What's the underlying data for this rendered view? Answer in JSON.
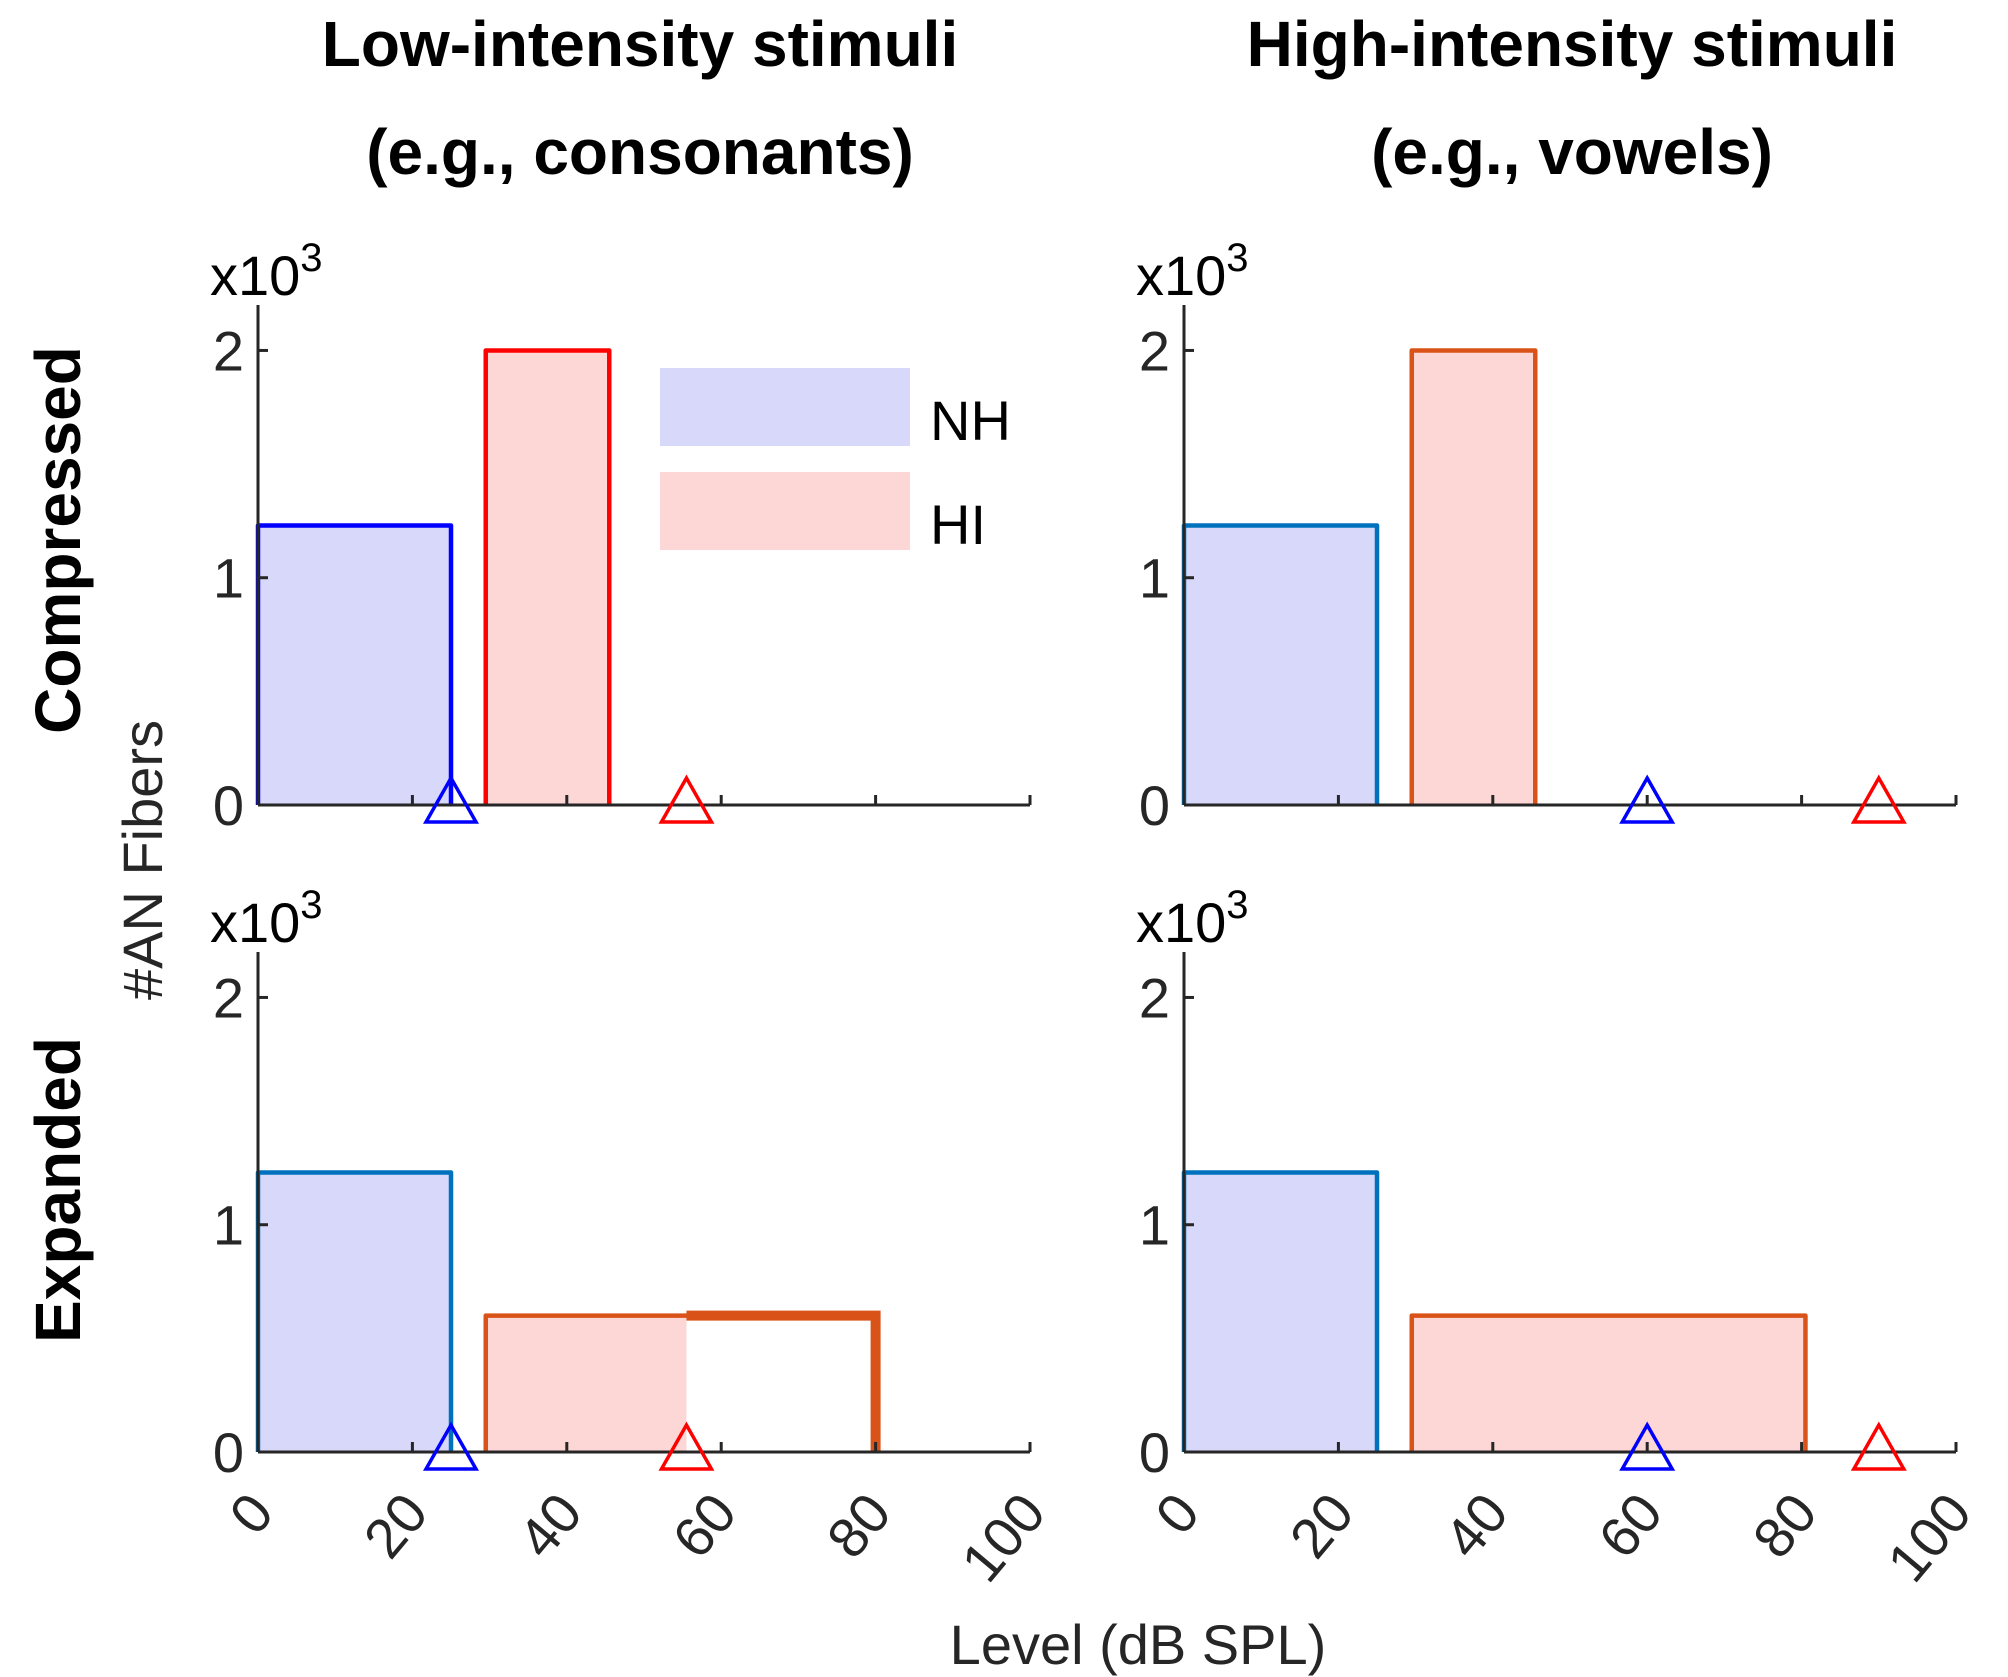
{
  "col_titles": [
    [
      "Low-intensity stimuli",
      "(e.g., consonants)"
    ],
    [
      "High-intensity stimuli",
      "(e.g., vowels)"
    ]
  ],
  "row_titles": [
    "Compressed",
    "Expanded"
  ],
  "ylabel": "#AN Fibers",
  "xlabel": "Level (dB SPL)",
  "y_multiplier": {
    "base": "x10",
    "exp": "3"
  },
  "legend": [
    {
      "label": "NH",
      "fill": "#d8d8fb"
    },
    {
      "label": "HI",
      "fill": "#fdd6d6"
    }
  ],
  "chart_data": [
    {
      "type": "bar",
      "panel": "Compressed / Low-intensity stimuli",
      "xlim": [
        0,
        100
      ],
      "ylim": [
        0,
        2.2
      ],
      "xticks": [
        0,
        20,
        40,
        60,
        80,
        100
      ],
      "yticks": [
        0,
        1,
        2
      ],
      "y_scale": "x10^3",
      "series": [
        {
          "name": "NH",
          "x0": 0,
          "x1": 25,
          "height": 1.23,
          "fill": "#d8d8fb",
          "edge": "#0000ff"
        },
        {
          "name": "HI",
          "x0": 29.5,
          "x1": 45.5,
          "height": 2.0,
          "fill": "#fdd6d6",
          "edge": "#ff0000"
        }
      ],
      "markers": [
        {
          "x": 25,
          "y": 0,
          "shape": "triangle",
          "color": "#0000ff"
        },
        {
          "x": 55.5,
          "y": 0,
          "shape": "triangle",
          "color": "#ff0000"
        }
      ]
    },
    {
      "type": "bar",
      "panel": "Compressed / High-intensity stimuli",
      "xlim": [
        0,
        100
      ],
      "ylim": [
        0,
        2.2
      ],
      "xticks": [
        0,
        20,
        40,
        60,
        80,
        100
      ],
      "yticks": [
        0,
        1,
        2
      ],
      "y_scale": "x10^3",
      "series": [
        {
          "name": "NH",
          "x0": 0,
          "x1": 25,
          "height": 1.23,
          "fill": "#d8d8fb",
          "edge": "#0072bd"
        },
        {
          "name": "HI",
          "x0": 29.5,
          "x1": 45.5,
          "height": 2.0,
          "fill": "#fdd6d6",
          "edge": "#d95319"
        }
      ],
      "markers": [
        {
          "x": 60,
          "y": 0,
          "shape": "triangle",
          "color": "#0000ff"
        },
        {
          "x": 90,
          "y": 0,
          "shape": "triangle",
          "color": "#ff0000"
        }
      ]
    },
    {
      "type": "bar",
      "panel": "Expanded / Low-intensity stimuli",
      "xlim": [
        0,
        100
      ],
      "ylim": [
        0,
        2.2
      ],
      "xticks": [
        0,
        20,
        40,
        60,
        80,
        100
      ],
      "yticks": [
        0,
        1,
        2
      ],
      "y_scale": "x10^3",
      "series": [
        {
          "name": "NH",
          "x0": 0,
          "x1": 25,
          "height": 1.23,
          "fill": "#d8d8fb",
          "edge": "#0072bd"
        },
        {
          "name": "HI",
          "x0": 29.5,
          "x1": 80,
          "height": 0.6,
          "fill": "#fdd6d6",
          "edge": "#d95319",
          "fill_to": 55.5,
          "thick_from": 55.5
        }
      ],
      "markers": [
        {
          "x": 25,
          "y": 0,
          "shape": "triangle",
          "color": "#0000ff"
        },
        {
          "x": 55.5,
          "y": 0,
          "shape": "triangle",
          "color": "#ff0000"
        }
      ]
    },
    {
      "type": "bar",
      "panel": "Expanded / High-intensity stimuli",
      "xlim": [
        0,
        100
      ],
      "ylim": [
        0,
        2.2
      ],
      "xticks": [
        0,
        20,
        40,
        60,
        80,
        100
      ],
      "yticks": [
        0,
        1,
        2
      ],
      "y_scale": "x10^3",
      "series": [
        {
          "name": "NH",
          "x0": 0,
          "x1": 25,
          "height": 1.23,
          "fill": "#d8d8fb",
          "edge": "#0072bd"
        },
        {
          "name": "HI",
          "x0": 29.5,
          "x1": 80.5,
          "height": 0.6,
          "fill": "#fdd6d6",
          "edge": "#d95319"
        }
      ],
      "markers": [
        {
          "x": 60,
          "y": 0,
          "shape": "triangle",
          "color": "#0000ff"
        },
        {
          "x": 90,
          "y": 0,
          "shape": "triangle",
          "color": "#ff0000"
        }
      ]
    }
  ]
}
